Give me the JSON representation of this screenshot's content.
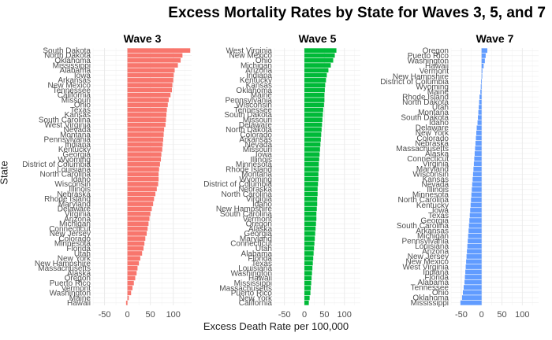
{
  "chart_data": {
    "type": "bar",
    "title": "Excess Mortality Rates by State for Waves 3, 5, and 7",
    "xlabel": "Excess Death Rate per 100,000",
    "ylabel": "State",
    "xlim": [
      -75,
      140
    ],
    "xticks": [
      -50,
      0,
      50,
      100
    ],
    "xtick_labels": [
      "-50",
      "0",
      "50",
      "100"
    ],
    "grid": true,
    "legend": "none",
    "panels": [
      {
        "name": "Wave 3",
        "color": "#F8766D",
        "states": [
          "South Dakota",
          "North Dakota",
          "Oklahoma",
          "Mississippi",
          "Alabama",
          "Iowa",
          "Arkansas",
          "New Mexico",
          "Tennessee",
          "California",
          "Missouri",
          "Ohio",
          "Texas",
          "Kansas",
          "South Carolina",
          "West Virginia",
          "Nevada",
          "Montana",
          "Pennsylvania",
          "Indiana",
          "Kentucky",
          "Georgia",
          "Wyoming",
          "District of Columbia",
          "Louisiana",
          "North Carolina",
          "Idaho",
          "Wisconsin",
          "Illinois",
          "Nebraska",
          "Rhode Island",
          "Maryland",
          "Delaware",
          "Virginia",
          "Arizona",
          "Michigan",
          "Connecticut",
          "New Jersey",
          "Colorado",
          "Minnesota",
          "Florida",
          "Utah",
          "New York",
          "New Hampshire",
          "Massachusetts",
          "Alaska",
          "Oregon",
          "Puerto Rico",
          "Vermont",
          "Washington",
          "Maine",
          "Hawaii"
        ],
        "values": [
          137,
          120,
          116,
          110,
          103,
          101,
          100,
          98,
          97,
          94,
          90,
          88,
          86,
          85,
          84,
          83,
          80,
          79,
          78,
          77,
          76,
          74,
          73,
          71,
          69,
          68,
          68,
          67,
          64,
          61,
          58,
          56,
          53,
          50,
          48,
          46,
          44,
          42,
          39,
          37,
          35,
          32,
          28,
          25,
          22,
          20,
          17,
          14,
          11,
          8,
          3,
          -3
        ]
      },
      {
        "name": "Wave 5",
        "color": "#00BA38",
        "states": [
          "West Virginia",
          "New Mexico",
          "Ohio",
          "Michigan",
          "Arizona",
          "Indiana",
          "Kentucky",
          "Kansas",
          "Oklahoma",
          "Maine",
          "Pennsylvania",
          "Wisconsin",
          "Tennessee",
          "South Dakota",
          "Missouri",
          "Delaware",
          "North Dakota",
          "Colorado",
          "Arkansas",
          "Nevada",
          "Missouri",
          "Iowa",
          "Illinois",
          "Minnesota",
          "Rhode Island",
          "Montana",
          "Wyoming",
          "District of Columbia",
          "Nebraska",
          "North Carolina",
          "Virginia",
          "Idaho",
          "New Hampshire",
          "South Carolina",
          "Vermont",
          "Oregon",
          "Alaska",
          "Georgia",
          "Maryland",
          "Connecticut",
          "Utah",
          "Alabama",
          "Florida",
          "Texas",
          "Louisiana",
          "Washington",
          "Hawaii",
          "Mississippi",
          "Massachusetts",
          "Puerto Rico",
          "New York",
          "California"
        ],
        "values": [
          80,
          76,
          72,
          66,
          60,
          56,
          54,
          52,
          51,
          50,
          50,
          49,
          47,
          46,
          45,
          44,
          43,
          42,
          41,
          40,
          39,
          38,
          37,
          36,
          36,
          35,
          35,
          34,
          33,
          33,
          32,
          32,
          31,
          30,
          30,
          29,
          28,
          27,
          26,
          25,
          24,
          23,
          22,
          21,
          20,
          19,
          18,
          17,
          16,
          15,
          13,
          11
        ]
      },
      {
        "name": "Wave 7",
        "color": "#619CFF",
        "states": [
          "Oregon",
          "Puerto Rico",
          "Washington",
          "Hawaii",
          "Vermont",
          "New Hampshire",
          "District of Columbia",
          "Wyoming",
          "Maine",
          "Rhode Island",
          "North Dakota",
          "Utah",
          "Montana",
          "South Dakota",
          "Idaho",
          "Delaware",
          "New York",
          "Colorado",
          "Nebraska",
          "Massachusetts",
          "Alaska",
          "Connecticut",
          "Virginia",
          "Maryland",
          "Wisconsin",
          "Kansas",
          "Nevada",
          "Illinois",
          "Minnesota",
          "North Carolina",
          "Kentucky",
          "Iowa",
          "Texas",
          "Georgia",
          "South Carolina",
          "Arkansas",
          "Michigan",
          "Pennsylvania",
          "Louisiana",
          "Arizona",
          "New Jersey",
          "New Mexico",
          "West Virginia",
          "Indiana",
          "Florida",
          "Alabama",
          "Tennessee",
          "Ohio",
          "Oklahoma",
          "Mississippi"
        ],
        "values": [
          14,
          10,
          8,
          5,
          2,
          0,
          -1,
          -2,
          -3,
          -5,
          -6,
          -7,
          -8,
          -9,
          -10,
          -12,
          -13,
          -14,
          -15,
          -16,
          -17,
          -18,
          -19,
          -20,
          -21,
          -22,
          -23,
          -24,
          -25,
          -26,
          -27,
          -28,
          -29,
          -30,
          -31,
          -32,
          -33,
          -34,
          -35,
          -36,
          -37,
          -38,
          -39,
          -40,
          -41,
          -42,
          -44,
          -46,
          -48,
          -52
        ]
      }
    ]
  }
}
